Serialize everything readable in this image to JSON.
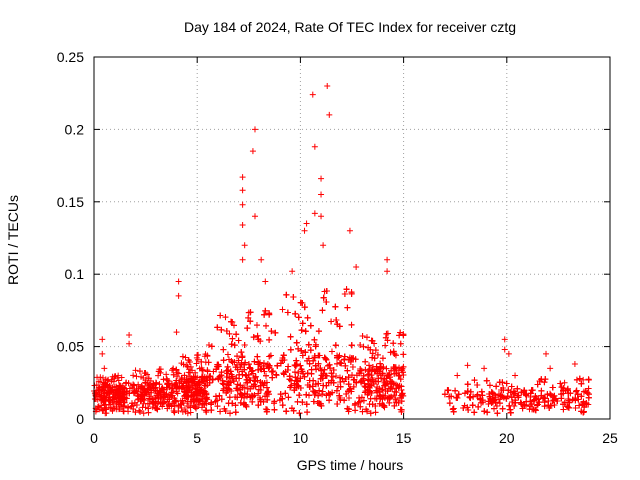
{
  "chart_data": {
    "type": "scatter",
    "title": "Day 184 of 2024, Rate Of TEC Index for receiver cztg",
    "xlabel": "GPS time / hours",
    "ylabel": "ROTI / TECUs",
    "xlim": [
      0,
      25
    ],
    "ylim": [
      0,
      0.25
    ],
    "x_ticks": [
      0,
      5,
      10,
      15,
      20,
      25
    ],
    "x_tick_labels": [
      "0",
      "5",
      "10",
      "15",
      "20",
      "25"
    ],
    "y_ticks": [
      0,
      0.05,
      0.1,
      0.15,
      0.2,
      0.25
    ],
    "y_tick_labels": [
      "0",
      "0.05",
      "0.1",
      "0.15",
      "0.2",
      "0.25"
    ],
    "grid": true,
    "marker": "plus",
    "color": "#ff0000",
    "series": [
      {
        "name": "ROTI",
        "notable_points": [
          {
            "x": 0.4,
            "y": 0.055
          },
          {
            "x": 0.4,
            "y": 0.045
          },
          {
            "x": 0.5,
            "y": 0.035
          },
          {
            "x": 1.7,
            "y": 0.058
          },
          {
            "x": 1.7,
            "y": 0.052
          },
          {
            "x": 4.1,
            "y": 0.095
          },
          {
            "x": 4.1,
            "y": 0.085
          },
          {
            "x": 4.0,
            "y": 0.06
          },
          {
            "x": 7.2,
            "y": 0.167
          },
          {
            "x": 7.2,
            "y": 0.158
          },
          {
            "x": 7.2,
            "y": 0.148
          },
          {
            "x": 7.2,
            "y": 0.134
          },
          {
            "x": 7.3,
            "y": 0.12
          },
          {
            "x": 7.2,
            "y": 0.11
          },
          {
            "x": 7.8,
            "y": 0.2
          },
          {
            "x": 7.7,
            "y": 0.185
          },
          {
            "x": 7.8,
            "y": 0.14
          },
          {
            "x": 8.1,
            "y": 0.11
          },
          {
            "x": 8.3,
            "y": 0.095
          },
          {
            "x": 9.6,
            "y": 0.102
          },
          {
            "x": 10.2,
            "y": 0.13
          },
          {
            "x": 10.3,
            "y": 0.135
          },
          {
            "x": 10.7,
            "y": 0.188
          },
          {
            "x": 10.6,
            "y": 0.224
          },
          {
            "x": 10.7,
            "y": 0.142
          },
          {
            "x": 11.0,
            "y": 0.166
          },
          {
            "x": 11.0,
            "y": 0.155
          },
          {
            "x": 11.0,
            "y": 0.14
          },
          {
            "x": 11.3,
            "y": 0.23
          },
          {
            "x": 11.4,
            "y": 0.21
          },
          {
            "x": 11.1,
            "y": 0.12
          },
          {
            "x": 12.4,
            "y": 0.13
          },
          {
            "x": 12.7,
            "y": 0.105
          },
          {
            "x": 14.2,
            "y": 0.11
          },
          {
            "x": 14.2,
            "y": 0.102
          },
          {
            "x": 17.6,
            "y": 0.03
          },
          {
            "x": 18.1,
            "y": 0.037
          },
          {
            "x": 18.9,
            "y": 0.035
          },
          {
            "x": 19.9,
            "y": 0.055
          },
          {
            "x": 19.9,
            "y": 0.048
          },
          {
            "x": 20.1,
            "y": 0.045
          },
          {
            "x": 20.4,
            "y": 0.03
          },
          {
            "x": 21.9,
            "y": 0.045
          },
          {
            "x": 22.1,
            "y": 0.035
          },
          {
            "x": 22.8,
            "y": 0.025
          },
          {
            "x": 23.3,
            "y": 0.038
          },
          {
            "x": 23.7,
            "y": 0.027
          }
        ],
        "segments": [
          {
            "x_start": 0.0,
            "x_end": 1.5,
            "median": 0.012,
            "upper": 0.03,
            "count": 220
          },
          {
            "x_start": 1.5,
            "x_end": 4.0,
            "median": 0.013,
            "upper": 0.035,
            "count": 340
          },
          {
            "x_start": 4.0,
            "x_end": 5.5,
            "median": 0.016,
            "upper": 0.045,
            "count": 260
          },
          {
            "x_start": 5.5,
            "x_end": 8.5,
            "median": 0.022,
            "upper": 0.075,
            "count": 600
          },
          {
            "x_start": 8.5,
            "x_end": 12.5,
            "median": 0.025,
            "upper": 0.09,
            "count": 800
          },
          {
            "x_start": 12.5,
            "x_end": 15.0,
            "median": 0.02,
            "upper": 0.06,
            "count": 450
          },
          {
            "x_start": 17.0,
            "x_end": 24.0,
            "median": 0.01,
            "upper": 0.028,
            "count": 700
          }
        ],
        "no_data_range": [
          15.0,
          17.0
        ]
      }
    ]
  }
}
